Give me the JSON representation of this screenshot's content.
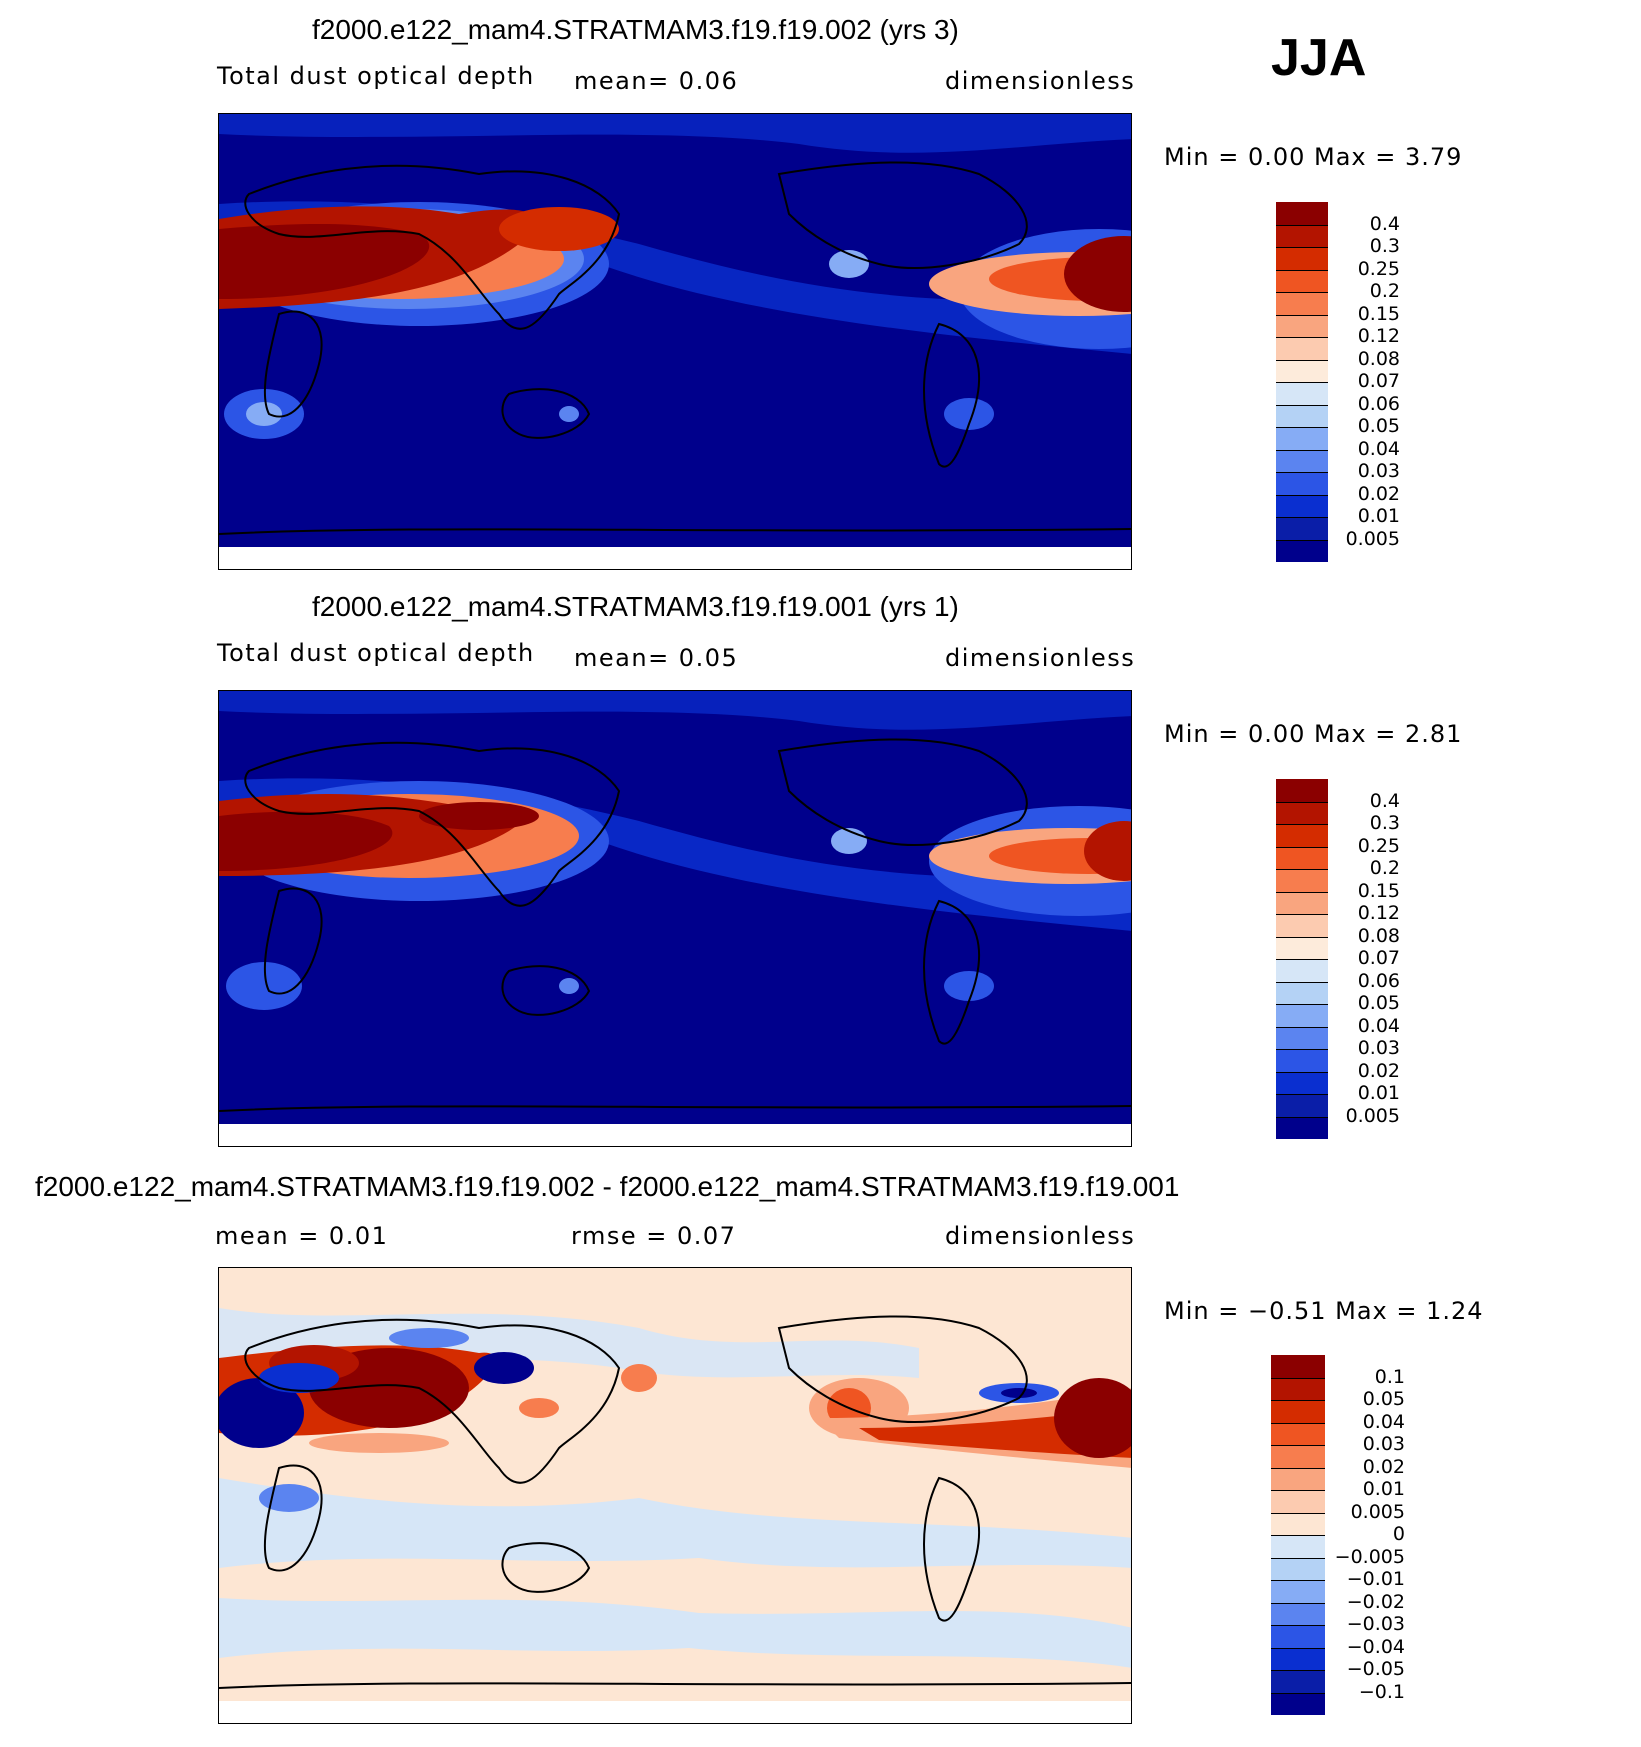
{
  "season": "JJA",
  "panels": [
    {
      "title": "f2000.e122_mam4.STRATMAM3.f19.f19.002 (yrs 3)",
      "left": "Total dust optical depth",
      "middle": "mean=     0.06",
      "right": "dimensionless",
      "minmax": "Min =     0.00  Max =      3.79",
      "levels": [
        "0.4",
        "0.3",
        "0.25",
        "0.2",
        "0.15",
        "0.12",
        "0.08",
        "0.07",
        "0.06",
        "0.05",
        "0.04",
        "0.03",
        "0.02",
        "0.01",
        "0.005"
      ]
    },
    {
      "title": "f2000.e122_mam4.STRATMAM3.f19.f19.001 (yrs 1)",
      "left": "Total dust optical depth",
      "middle": "mean=     0.05",
      "right": "dimensionless",
      "minmax": "Min =     0.00  Max =      2.81",
      "levels": [
        "0.4",
        "0.3",
        "0.25",
        "0.2",
        "0.15",
        "0.12",
        "0.08",
        "0.07",
        "0.06",
        "0.05",
        "0.04",
        "0.03",
        "0.02",
        "0.01",
        "0.005"
      ]
    },
    {
      "title": "f2000.e122_mam4.STRATMAM3.f19.f19.002 - f2000.e122_mam4.STRATMAM3.f19.f19.001",
      "left": "mean =     0.01",
      "middle": "rmse =     0.07",
      "right": "dimensionless",
      "minmax": "Min =   −0.51  Max =      1.24",
      "levels": [
        "0.1",
        "0.05",
        "0.04",
        "0.03",
        "0.02",
        "0.01",
        "0.005",
        "0",
        "−0.005",
        "−0.01",
        "−0.02",
        "−0.03",
        "−0.04",
        "−0.05",
        "−0.1"
      ]
    }
  ],
  "colors": {
    "abs_scale": [
      "#8b0000",
      "#b31400",
      "#d42c00",
      "#ef5522",
      "#f77d4e",
      "#f9a57f",
      "#fccbb0",
      "#fdebdb",
      "#d6e6f7",
      "#b4d2f5",
      "#86acf5",
      "#5b84f0",
      "#2c55e6",
      "#0a2fd0",
      "#0a1ea8",
      "#00008c"
    ],
    "diff_scale": [
      "#8b0000",
      "#b31400",
      "#d42c00",
      "#ef5522",
      "#f77d4e",
      "#f9a57f",
      "#fccbb0",
      "#fde6d3",
      "#d6e6f7",
      "#b4d2f5",
      "#86acf5",
      "#5b84f0",
      "#2c55e6",
      "#0a2fd0",
      "#0a1ea8",
      "#00008c"
    ]
  }
}
